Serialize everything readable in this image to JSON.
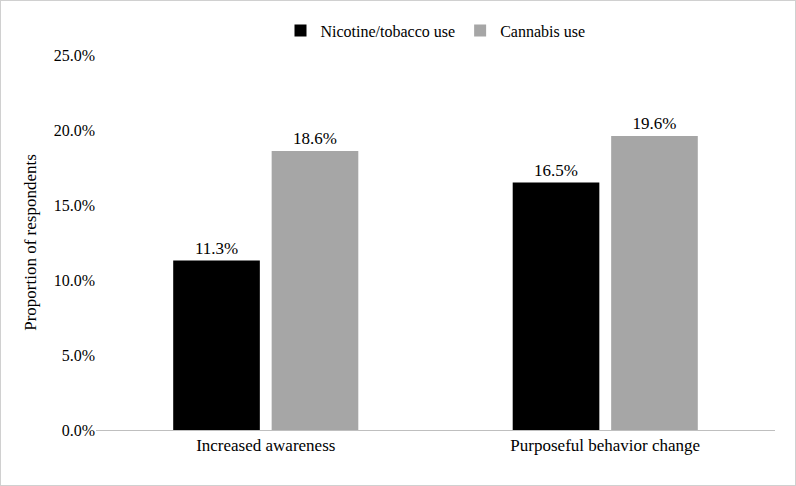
{
  "chart_data": {
    "type": "bar",
    "y_label": "Proportion of respondents",
    "categories": [
      "Increased awareness",
      "Purposeful behavior change"
    ],
    "series": [
      {
        "name": "Nicotine/tobacco use",
        "color": "#000000",
        "values": [
          11.3,
          16.5
        ],
        "value_labels": [
          "11.3%",
          "16.5%"
        ]
      },
      {
        "name": "Cannabis use",
        "color": "#a6a6a6",
        "values": [
          18.6,
          19.6
        ],
        "value_labels": [
          "18.6%",
          "19.6%"
        ]
      }
    ],
    "ylim": [
      0,
      25
    ],
    "yticks": [
      {
        "value": 0,
        "label": "0.0%"
      },
      {
        "value": 5,
        "label": "5.0%"
      },
      {
        "value": 10,
        "label": "10.0%"
      },
      {
        "value": 15,
        "label": "15.0%"
      },
      {
        "value": 20,
        "label": "20.0%"
      },
      {
        "value": 25,
        "label": "25.0%"
      }
    ],
    "grid": false,
    "legend": "top",
    "data_labels": true
  }
}
